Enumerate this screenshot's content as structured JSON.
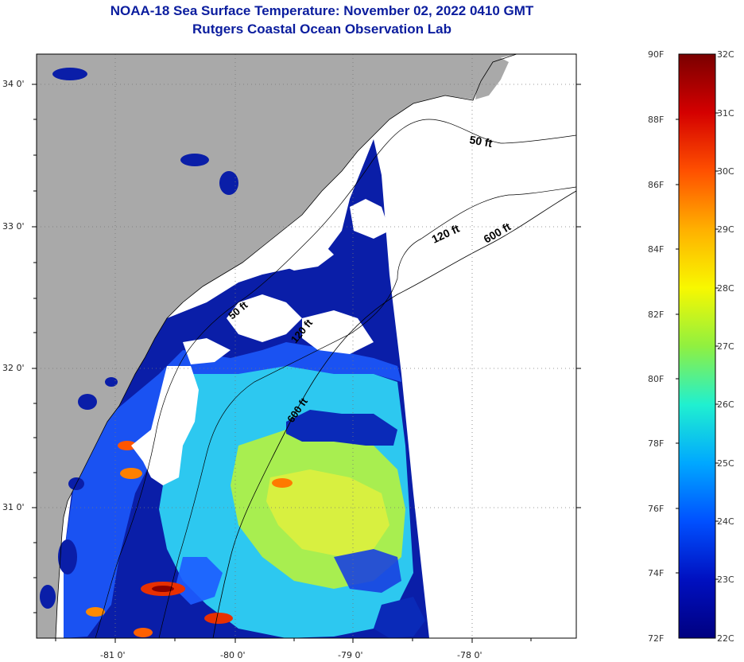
{
  "title": {
    "line1": "NOAA-18 Sea Surface Temperature:  November 02, 2022 0410 GMT",
    "line2": "Rutgers Coastal Ocean Observation Lab"
  },
  "axes": {
    "lat_labels": [
      "34 0'",
      "33 0'",
      "32 0'",
      "31 0'"
    ],
    "lon_labels": [
      "-81 0'",
      "-80 0'",
      "-79 0'",
      "-78 0'"
    ]
  },
  "contours": {
    "label_50": "50 ft",
    "label_120": "120 ft",
    "label_600": "600 ft"
  },
  "colorbar": {
    "fahrenheit": [
      "90F",
      "88F",
      "86F",
      "84F",
      "82F",
      "80F",
      "78F",
      "76F",
      "74F",
      "72F"
    ],
    "celsius": [
      "32C",
      "31C",
      "30C",
      "29C",
      "28C",
      "27C",
      "26C",
      "25C",
      "24C",
      "23C",
      "22C"
    ],
    "colors": [
      "#7a0000",
      "#d40000",
      "#ff5000",
      "#ffb000",
      "#f8f800",
      "#90f040",
      "#20f0d0",
      "#00a8ff",
      "#0050ff",
      "#0010c0",
      "#000080"
    ]
  },
  "colors": {
    "land": "#a9a9a9",
    "cloud": "#ffffff",
    "cool_water": "#0a1ea8",
    "title": "#0b1d9e"
  }
}
